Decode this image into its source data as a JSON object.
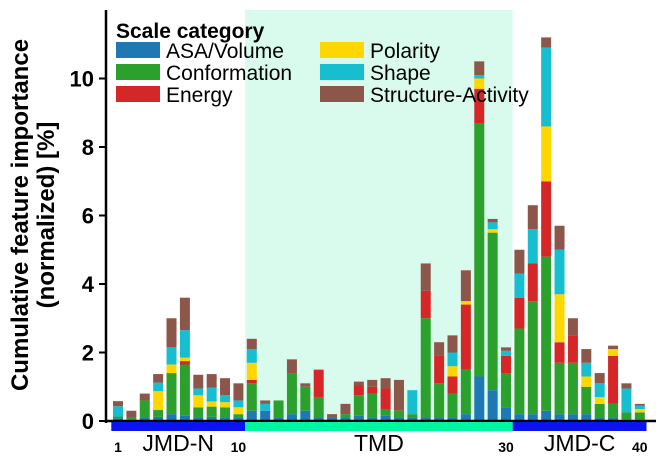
{
  "chart_data": {
    "type": "bar",
    "stacked": true,
    "title": "",
    "xlabel": "",
    "ylabel_line1": "Cumulative feature importance",
    "ylabel_line2": "(normalized) [%]",
    "ylim": [
      0,
      12
    ],
    "yticks": [
      "0",
      "2",
      "4",
      "6",
      "8",
      "10"
    ],
    "ytick_values": [
      0,
      2,
      4,
      6,
      8,
      10
    ],
    "x": [
      1,
      2,
      3,
      4,
      5,
      6,
      7,
      8,
      9,
      10,
      11,
      12,
      13,
      14,
      15,
      16,
      17,
      18,
      19,
      20,
      21,
      22,
      23,
      24,
      25,
      26,
      27,
      28,
      29,
      30,
      31,
      32,
      33,
      34,
      35,
      36,
      37,
      38,
      39,
      40
    ],
    "x_tick_labels": [
      {
        "x": 1,
        "label": "1"
      },
      {
        "x": 10,
        "label": "10"
      },
      {
        "x": 30,
        "label": "30"
      },
      {
        "x": 40,
        "label": "40"
      }
    ],
    "regions": [
      {
        "name": "JMD-N",
        "start": 1,
        "end": 10,
        "color": "#0a14f0"
      },
      {
        "name": "TMD",
        "start": 11,
        "end": 30,
        "color": "#00f5a0",
        "shade": "#d9fbed"
      },
      {
        "name": "JMD-C",
        "start": 31,
        "end": 40,
        "color": "#0a14f0"
      }
    ],
    "legend": {
      "title": "Scale category",
      "placement": "top-left",
      "order": [
        "ASA/Volume",
        "Polarity",
        "Conformation",
        "Shape",
        "Energy",
        "Structure-Activity"
      ]
    },
    "series": [
      {
        "name": "ASA/Volume",
        "color": "#1f77b4",
        "values": [
          0.08,
          0.05,
          0.1,
          0.12,
          0.2,
          0.15,
          0.1,
          0.12,
          0.1,
          0.1,
          0.3,
          0.3,
          0.1,
          0.2,
          0.3,
          0.1,
          0.1,
          0.1,
          0.15,
          0.1,
          0.15,
          0.1,
          0.1,
          0.1,
          0.1,
          0.1,
          0.2,
          1.3,
          0.9,
          0.4,
          0.2,
          0.2,
          0.3,
          0.2,
          0.2,
          0.2,
          0.1,
          0.1,
          0.05,
          0.05
        ]
      },
      {
        "name": "Conformation",
        "color": "#2ca02c",
        "values": [
          0.05,
          0.05,
          0.5,
          0.2,
          1.2,
          1.5,
          0.3,
          0.3,
          0.3,
          0.1,
          0.8,
          0.0,
          0.5,
          1.2,
          0.7,
          0.6,
          0.0,
          0.1,
          0.6,
          0.7,
          0.2,
          0.2,
          0.1,
          2.9,
          1.0,
          0.7,
          1.3,
          7.4,
          4.6,
          1.0,
          2.5,
          3.3,
          4.5,
          1.5,
          1.5,
          0.8,
          0.4,
          0.4,
          0.2,
          0.2
        ]
      },
      {
        "name": "Energy",
        "color": "#d62728",
        "values": [
          0.0,
          0.0,
          0.0,
          0.0,
          0.0,
          0.1,
          0.0,
          0.0,
          0.0,
          0.0,
          0.1,
          0.0,
          0.0,
          0.0,
          0.0,
          0.8,
          0.0,
          0.0,
          0.3,
          0.2,
          0.6,
          0.0,
          0.0,
          0.8,
          0.8,
          0.5,
          1.9,
          1.0,
          0.0,
          0.5,
          0.9,
          1.1,
          2.2,
          0.6,
          0.8,
          0.0,
          0.0,
          1.4,
          0.0,
          0.0
        ]
      },
      {
        "name": "Polarity",
        "color": "#ffd700",
        "values": [
          0.0,
          0.0,
          0.0,
          0.55,
          0.25,
          0.1,
          0.35,
          0.15,
          0.15,
          0.2,
          0.5,
          0.0,
          0.0,
          0.0,
          0.0,
          0.0,
          0.0,
          0.0,
          0.0,
          0.0,
          0.0,
          0.0,
          0.0,
          0.0,
          0.0,
          0.3,
          0.1,
          0.3,
          0.1,
          0.0,
          0.0,
          0.0,
          1.6,
          1.4,
          0.0,
          0.3,
          0.2,
          0.2,
          0.0,
          0.1
        ]
      },
      {
        "name": "Shape",
        "color": "#17becf",
        "values": [
          0.3,
          0.0,
          0.0,
          0.25,
          0.5,
          0.8,
          0.2,
          0.4,
          0.2,
          0.2,
          0.4,
          0.2,
          0.0,
          0.0,
          0.0,
          0.0,
          0.0,
          0.0,
          0.0,
          0.0,
          0.0,
          0.0,
          0.7,
          0.0,
          0.0,
          0.4,
          0.0,
          0.1,
          0.2,
          0.15,
          0.7,
          1.0,
          2.3,
          1.3,
          0.0,
          0.4,
          0.4,
          0.0,
          0.7,
          0.1
        ]
      },
      {
        "name": "Structure-Activity",
        "color": "#8c564b",
        "values": [
          0.15,
          0.2,
          0.2,
          0.25,
          0.85,
          0.95,
          0.4,
          0.4,
          0.5,
          0.5,
          0.3,
          0.1,
          0.0,
          0.4,
          0.1,
          0.0,
          0.1,
          0.3,
          0.1,
          0.2,
          0.3,
          0.9,
          0.0,
          0.8,
          0.4,
          0.5,
          0.9,
          0.4,
          0.1,
          0.1,
          0.7,
          0.7,
          0.3,
          0.7,
          0.5,
          0.4,
          0.3,
          0.1,
          0.15,
          0.05
        ]
      }
    ]
  }
}
